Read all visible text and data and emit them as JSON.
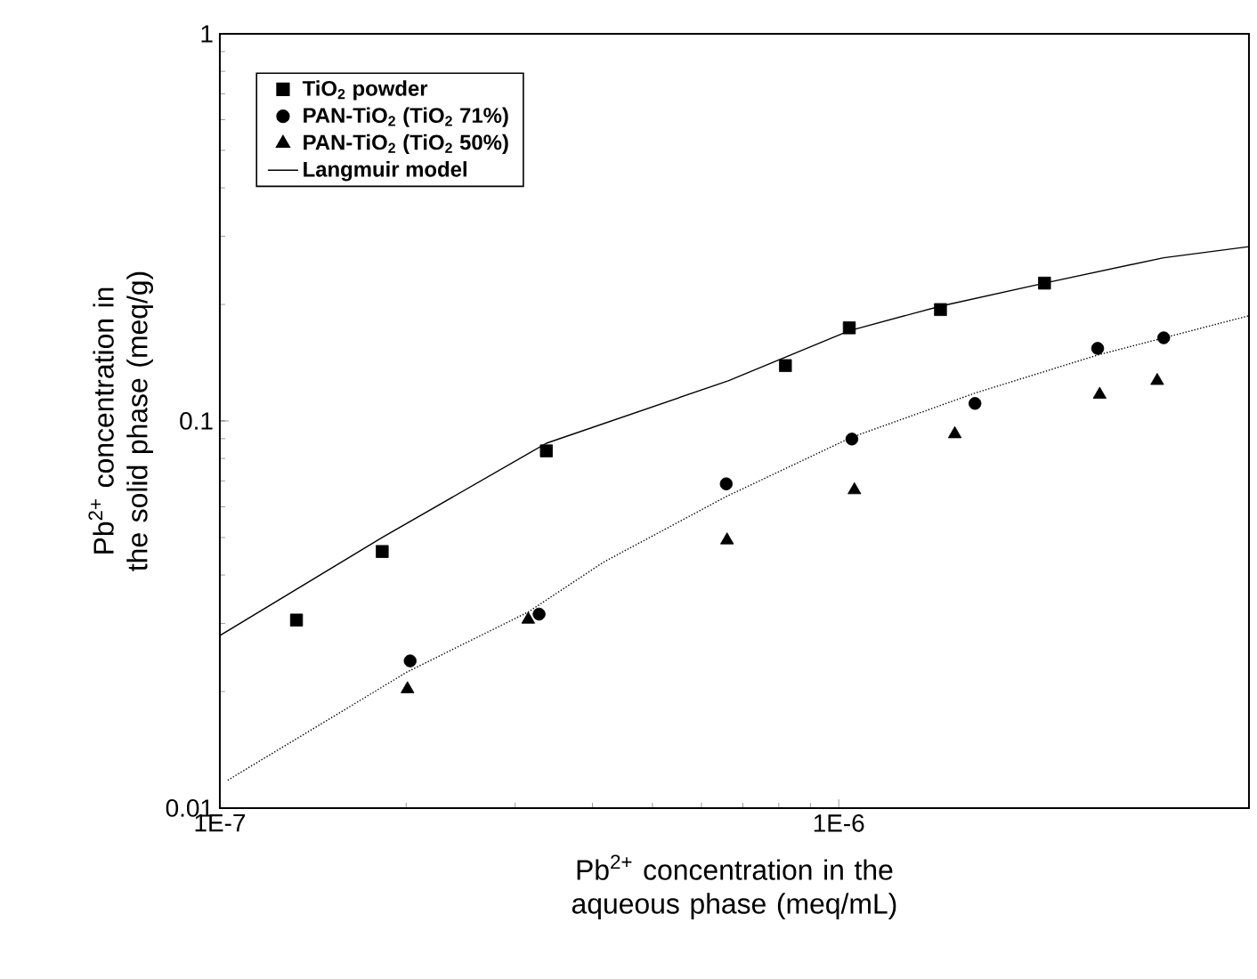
{
  "chart_data": {
    "type": "scatter",
    "xlabel": "Pb$^{2+}$ concentration in the aqueous phase (meq/mL)",
    "ylabel": "Pb$^{2+}$ concentration in the solid phase (meq/g)",
    "log": "xy",
    "xlim": [
      1e-07,
      4.6e-06
    ],
    "ylim": [
      0.01,
      1
    ],
    "xticks": [
      {
        "value": 1e-07,
        "label": "1E-7"
      },
      {
        "value": 1e-06,
        "label": "1E-6"
      }
    ],
    "yticks": [
      0.01,
      0.1,
      1
    ],
    "grid": false,
    "legend": "top left",
    "series": [
      {
        "name": "TiO$_{2}$ powder",
        "marker": "square",
        "color": "#000000",
        "x": [
          1.33e-07,
          1.83e-07,
          3.37e-07,
          8.2e-07,
          1.04e-06,
          1.46e-06,
          2.15e-06
        ],
        "values": [
          0.0306,
          0.046,
          0.0837,
          0.139,
          0.174,
          0.194,
          0.227
        ]
      },
      {
        "name": "PAN-TiO$_{2}$ (TiO$_{2}$ 71%)",
        "marker": "circle",
        "color": "#000000",
        "x": [
          2.03e-07,
          3.28e-07,
          6.58e-07,
          1.05e-06,
          1.66e-06,
          2.62e-06,
          3.35e-06
        ],
        "values": [
          0.024,
          0.0317,
          0.0688,
          0.0898,
          0.111,
          0.154,
          0.164
        ]
      },
      {
        "name": "PAN-TiO$_{2}$ (TiO$_{2}$ 50%)",
        "marker": "triangle",
        "color": "#000000",
        "x": [
          2.01e-07,
          3.15e-07,
          6.6e-07,
          1.06e-06,
          1.54e-06,
          2.64e-06,
          3.27e-06
        ],
        "values": [
          0.0203,
          0.0307,
          0.0492,
          0.0663,
          0.0925,
          0.117,
          0.127
        ]
      },
      {
        "name": "Langmuir model",
        "type": "line",
        "marker": "none",
        "line_style": "solid",
        "color": "#000000",
        "x": [
          1e-07,
          1.83e-07,
          3.37e-07,
          6.63e-07,
          1.04e-06,
          1.46e-06,
          2.15e-06,
          3.35e-06,
          4.6e-06
        ],
        "values": [
          0.0279,
          0.05,
          0.0876,
          0.127,
          0.171,
          0.198,
          0.227,
          0.264,
          0.282
        ]
      },
      {
        "type": "line",
        "marker": "none",
        "line_style": "dotted",
        "color": "#000000",
        "x": [
          1.03e-07,
          2.01e-07,
          3.15e-07,
          4.17e-07,
          6.58e-07,
          1.05e-06,
          1.66e-06,
          2.62e-06,
          4.6e-06
        ],
        "values": [
          0.0118,
          0.0225,
          0.0321,
          0.0432,
          0.0638,
          0.0908,
          0.118,
          0.148,
          0.187
        ]
      }
    ]
  }
}
